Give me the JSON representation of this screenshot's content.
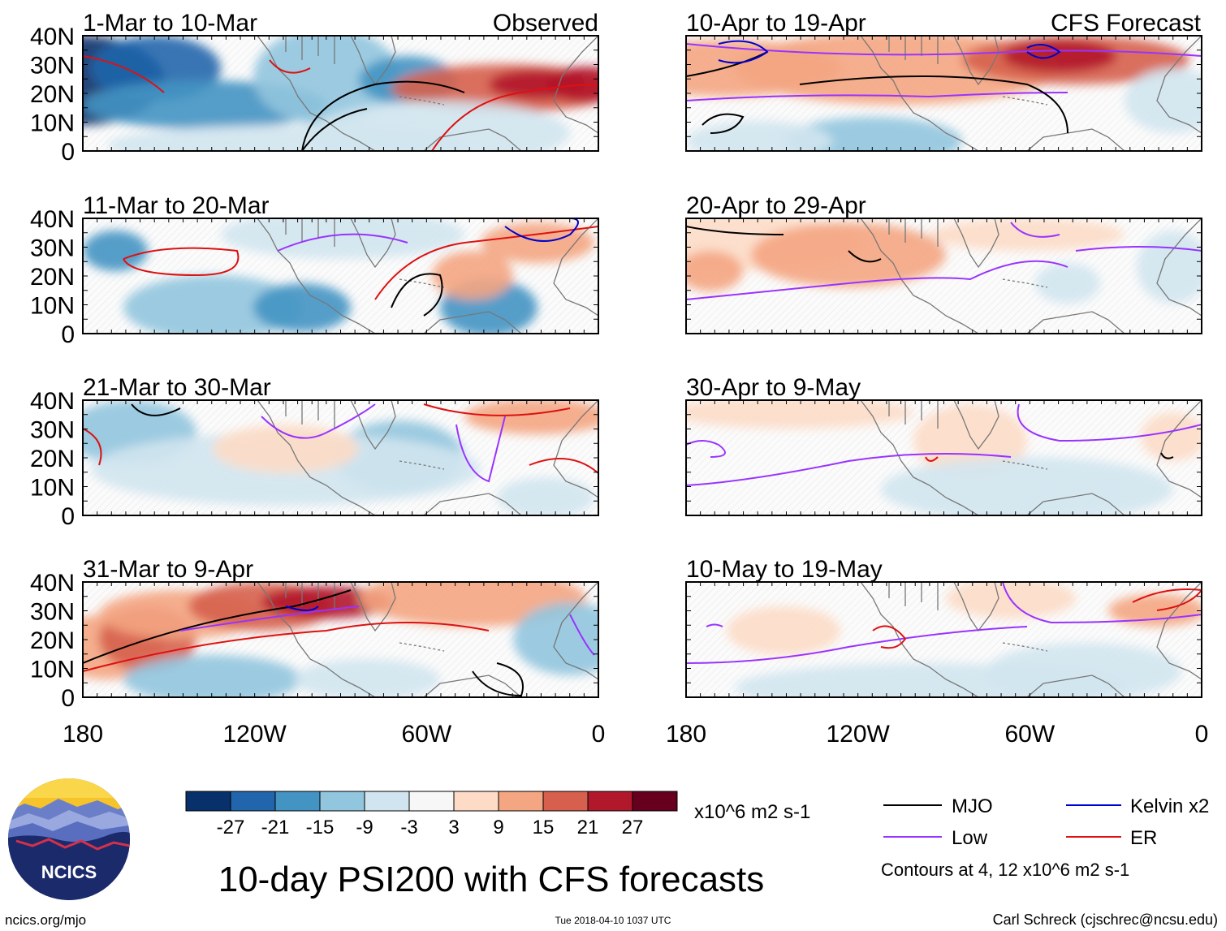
{
  "left_header": "Observed",
  "right_header": "CFS Forecast",
  "panels": [
    {
      "col": 0,
      "row": 0,
      "period": "1-Mar to 10-Mar"
    },
    {
      "col": 0,
      "row": 1,
      "period": "11-Mar to 20-Mar"
    },
    {
      "col": 0,
      "row": 2,
      "period": "21-Mar to 30-Mar"
    },
    {
      "col": 0,
      "row": 3,
      "period": "31-Mar to 9-Apr"
    },
    {
      "col": 1,
      "row": 0,
      "period": "10-Apr to 19-Apr"
    },
    {
      "col": 1,
      "row": 1,
      "period": "20-Apr to 29-Apr"
    },
    {
      "col": 1,
      "row": 2,
      "period": "30-Apr to 9-May"
    },
    {
      "col": 1,
      "row": 3,
      "period": "10-May to 19-May"
    }
  ],
  "lat_labels": [
    "40N",
    "30N",
    "20N",
    "10N",
    "0"
  ],
  "lat_values": [
    40,
    30,
    20,
    10,
    0
  ],
  "lon_labels": [
    "180",
    "120W",
    "60W",
    "0"
  ],
  "lon_values": [
    -180,
    -120,
    -60,
    0
  ],
  "colorbar": {
    "colors": [
      "#08306b",
      "#2166ac",
      "#4393c3",
      "#92c5de",
      "#d1e5f0",
      "#f7f7f7",
      "#fddbc7",
      "#f4a582",
      "#d6604d",
      "#b2182b",
      "#67001f"
    ],
    "labels": [
      "-27",
      "-21",
      "-15",
      "-9",
      "-3",
      "3",
      "9",
      "15",
      "21",
      "27"
    ],
    "units": "x10^6 m2 s-1"
  },
  "legend": {
    "items": [
      {
        "label": "MJO",
        "color": "#000000"
      },
      {
        "label": "Kelvin x2",
        "color": "#0000cc"
      },
      {
        "label": "Low",
        "color": "#9933ff"
      },
      {
        "label": "ER",
        "color": "#dd1111"
      }
    ],
    "note": "Contours at 4, 12 x10^6 m2 s-1"
  },
  "title": "10-day PSI200 with CFS forecasts",
  "logo_text": "NCICS",
  "footer": {
    "url": "ncics.org/mjo",
    "timestamp": "Tue 2018-04-10 1037 UTC",
    "credit": "Carl Schreck (cjschrec@ncsu.edu)"
  }
}
